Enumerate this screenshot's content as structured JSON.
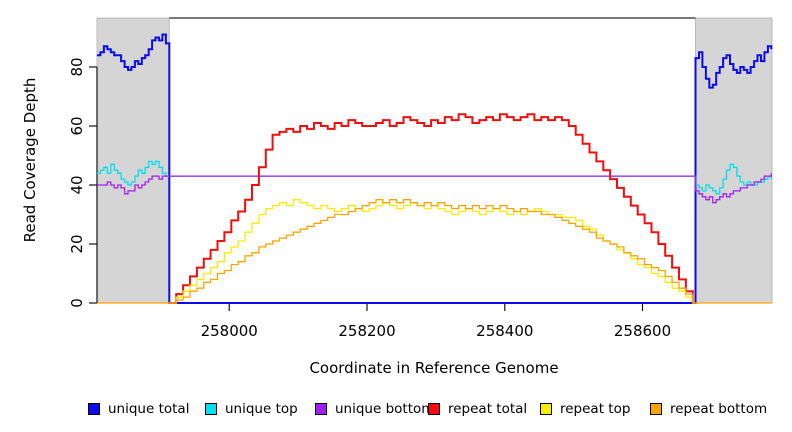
{
  "figure": {
    "x_axis_title": "Coordinate in Reference Genome",
    "y_axis_title": "Read Coverage Depth"
  },
  "legend": {
    "items": [
      {
        "label": "unique total",
        "color": "#0b0beb"
      },
      {
        "label": "unique top",
        "color": "#00e0ee"
      },
      {
        "label": "unique bottom",
        "color": "#a020f0"
      },
      {
        "label": "repeat total",
        "color": "#f50d0d"
      },
      {
        "label": "repeat top",
        "color": "#f9ee00"
      },
      {
        "label": "repeat bottom",
        "color": "#ffa400"
      }
    ]
  },
  "chart_data": {
    "type": "line",
    "title": "",
    "xlabel": "Coordinate in Reference Genome",
    "ylabel": "Read Coverage Depth",
    "xlim": [
      257808,
      258788
    ],
    "ylim": [
      0,
      96.6
    ],
    "grid": false,
    "legend_position": "bottom",
    "x_ticks": [
      {
        "value": 258000,
        "label": "258000"
      },
      {
        "value": 258200,
        "label": "258200"
      },
      {
        "value": 258400,
        "label": "258400"
      },
      {
        "value": 258600,
        "label": "258600"
      }
    ],
    "y_ticks": [
      {
        "value": 0,
        "label": "0"
      },
      {
        "value": 20,
        "label": "20"
      },
      {
        "value": 40,
        "label": "40"
      },
      {
        "value": 60,
        "label": "60"
      },
      {
        "value": 80,
        "label": "80"
      }
    ],
    "shaded_regions": [
      {
        "x0": 257808,
        "x1": 257913,
        "fill": "#d5d5d5",
        "border": "#b0b0b0"
      },
      {
        "x0": 258677,
        "x1": 258788,
        "fill": "#d5d5d5",
        "border": "#b0b0b0"
      }
    ],
    "top_border": {
      "x0": 257913,
      "x1": 258677,
      "color": "#4d4d4d"
    },
    "series": [
      {
        "name": "unique total",
        "color": "#0b0beb",
        "width": 2,
        "segments": [
          {
            "x0": 257808,
            "dx": 5,
            "values": [
              84,
              85,
              87,
              86,
              85,
              84,
              84,
              82,
              80,
              79,
              80,
              82,
              81,
              83,
              84,
              86,
              89,
              90,
              89,
              91,
              88,
              84
            ]
          },
          {
            "points": [
              [
                257913,
                0
              ],
              [
                258677,
                0
              ]
            ]
          },
          {
            "x0": 258677,
            "dx": 5,
            "values": [
              83,
              85,
              80,
              76,
              73,
              74,
              78,
              80,
              83,
              84,
              81,
              79,
              78,
              80,
              79,
              78,
              80,
              82,
              84,
              82,
              85,
              87,
              86
            ]
          }
        ]
      },
      {
        "name": "unique top",
        "color": "#00e0ee",
        "width": 1.3,
        "segments": [
          {
            "x0": 257808,
            "dx": 5,
            "values": [
              44,
              45,
              46,
              44,
              47,
              45,
              44,
              42,
              41,
              40,
              41,
              43,
              45,
              44,
              46,
              48,
              47,
              48,
              46,
              44,
              43,
              43
            ]
          },
          {
            "x0": 258677,
            "dx": 5,
            "values": [
              40,
              39,
              38,
              40,
              39,
              38,
              37,
              39,
              42,
              45,
              47,
              46,
              43,
              41,
              40,
              41,
              40,
              40,
              41,
              41,
              42,
              43,
              42
            ]
          }
        ]
      },
      {
        "name": "unique bottom",
        "color": "#a020f0",
        "width": 1.3,
        "segments": [
          {
            "x0": 257808,
            "dx": 5,
            "values": [
              40,
              40,
              40,
              41,
              40,
              39,
              40,
              39,
              37,
              38,
              38,
              40,
              39,
              40,
              41,
              42,
              43,
              43,
              42,
              43,
              43,
              43
            ]
          },
          {
            "x0": 258677,
            "dx": 5,
            "values": [
              38,
              37,
              36,
              35,
              36,
              34,
              35,
              36,
              37,
              36,
              37,
              38,
              38,
              39,
              39,
              40,
              40,
              41,
              41,
              42,
              43,
              43,
              44
            ]
          }
        ]
      },
      {
        "name": "repeat total",
        "color": "#f50d0d",
        "width": 2,
        "segments": [
          {
            "x0": 257913,
            "dx": 10,
            "values": [
              0,
              3,
              6,
              9,
              12,
              15,
              18,
              21,
              24,
              28,
              31,
              35,
              40,
              46,
              52,
              57,
              58,
              59,
              58,
              60,
              59,
              61,
              60,
              59,
              61,
              60,
              62,
              61,
              60,
              60,
              61,
              62,
              60,
              61,
              63,
              62,
              61,
              60,
              62,
              61,
              63,
              62,
              64,
              63,
              61,
              62,
              63,
              62,
              64,
              63,
              62,
              63,
              64,
              62,
              63,
              62,
              63,
              62,
              60,
              57,
              54,
              51,
              48,
              45,
              42,
              39,
              36,
              33,
              30,
              27,
              24,
              20,
              16,
              12,
              8,
              4,
              0
            ]
          },
          {
            "points": [
              [
                258677,
                0
              ]
            ]
          }
        ]
      },
      {
        "name": "repeat top",
        "color": "#f9ee00",
        "width": 1.3,
        "segments": [
          {
            "x0": 257913,
            "dx": 10,
            "values": [
              0,
              2,
              4,
              6,
              8,
              10,
              12,
              14,
              17,
              19,
              21,
              24,
              27,
              30,
              32,
              33,
              34,
              33,
              35,
              34,
              33,
              32,
              33,
              32,
              31,
              32,
              33,
              32,
              31,
              32,
              33,
              34,
              33,
              32,
              33,
              34,
              33,
              32,
              33,
              32,
              31,
              30,
              31,
              32,
              31,
              30,
              31,
              32,
              31,
              30,
              31,
              30,
              31,
              32,
              31,
              30,
              30,
              29,
              29,
              28,
              26,
              25,
              23,
              21,
              20,
              18,
              17,
              15,
              13,
              12,
              10,
              9,
              7,
              5,
              4,
              2,
              0
            ]
          },
          {
            "points": [
              [
                258677,
                0
              ]
            ]
          }
        ]
      },
      {
        "name": "repeat bottom",
        "color": "#ffa400",
        "width": 1.3,
        "segments": [
          {
            "points": [
              [
                257808,
                0
              ]
            ]
          },
          {
            "x0": 257913,
            "dx": 10,
            "values": [
              0,
              1,
              2,
              4,
              5,
              7,
              8,
              10,
              11,
              13,
              14,
              16,
              17,
              19,
              20,
              21,
              22,
              23,
              24,
              25,
              26,
              27,
              28,
              29,
              30,
              30,
              31,
              32,
              33,
              34,
              35,
              34,
              35,
              34,
              35,
              34,
              33,
              34,
              33,
              34,
              33,
              32,
              33,
              32,
              33,
              32,
              33,
              32,
              33,
              32,
              31,
              32,
              31,
              31,
              30,
              30,
              29,
              28,
              27,
              26,
              25,
              24,
              22,
              21,
              20,
              19,
              17,
              16,
              15,
              13,
              12,
              11,
              9,
              7,
              5,
              3,
              0
            ]
          },
          {
            "points": [
              [
                258677,
                0
              ],
              [
                258788,
                0
              ]
            ]
          }
        ]
      }
    ]
  }
}
